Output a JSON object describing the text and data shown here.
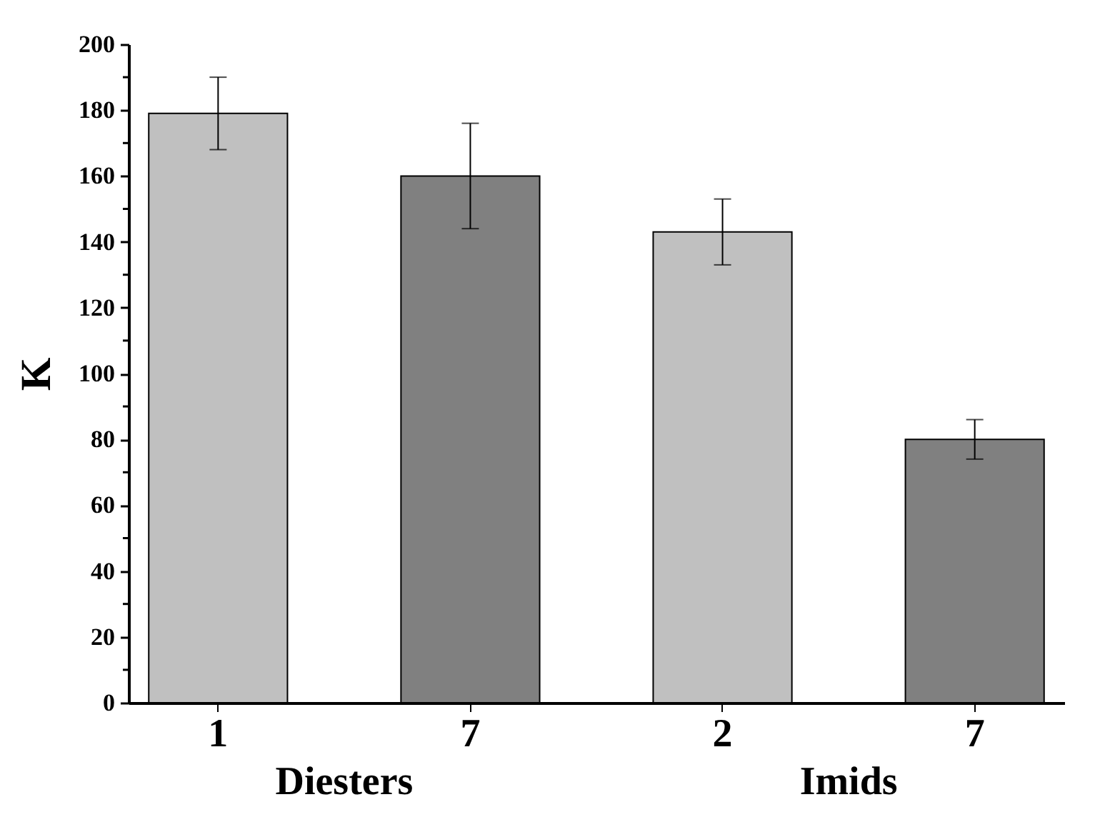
{
  "chart_data": {
    "type": "bar",
    "ylabel": "K",
    "categories": [
      "1",
      "7",
      "2",
      "7"
    ],
    "values": [
      179,
      160,
      143,
      80
    ],
    "colors": [
      "#c0c0c0",
      "#808080",
      "#c0c0c0",
      "#808080"
    ],
    "errors": [
      [
        168,
        190
      ],
      [
        144,
        176
      ],
      [
        133,
        153
      ],
      [
        74,
        86
      ]
    ],
    "annotations": [
      "Diesters",
      "Imids"
    ],
    "ylim": [
      0,
      200
    ],
    "yticks": [
      0,
      {
        "value": 10,
        "label": null
      },
      20,
      {
        "value": 30,
        "label": null
      },
      40,
      {
        "value": 50,
        "label": null
      },
      60,
      {
        "value": 70,
        "label": null
      },
      80,
      {
        "value": 90,
        "label": null
      },
      100,
      {
        "value": 110,
        "label": null
      },
      120,
      {
        "value": 130,
        "label": null
      },
      140,
      {
        "value": 150,
        "label": null
      },
      160,
      {
        "value": 170,
        "label": null
      },
      180,
      {
        "value": 190,
        "label": null
      },
      200
    ],
    "grid": false
  }
}
